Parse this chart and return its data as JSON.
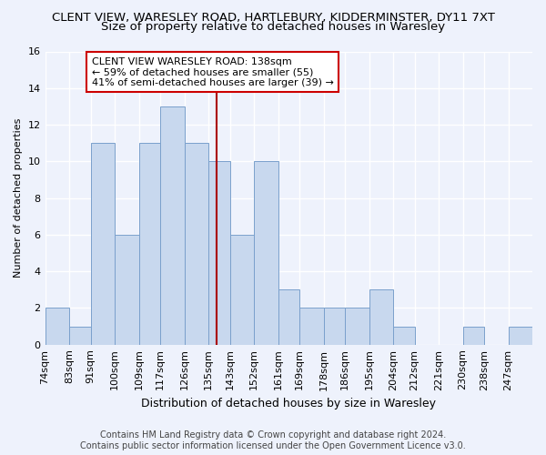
{
  "title1": "CLENT VIEW, WARESLEY ROAD, HARTLEBURY, KIDDERMINSTER, DY11 7XT",
  "title2": "Size of property relative to detached houses in Waresley",
  "xlabel": "Distribution of detached houses by size in Waresley",
  "ylabel": "Number of detached properties",
  "bin_labels": [
    "74sqm",
    "83sqm",
    "91sqm",
    "100sqm",
    "109sqm",
    "117sqm",
    "126sqm",
    "135sqm",
    "143sqm",
    "152sqm",
    "161sqm",
    "169sqm",
    "178sqm",
    "186sqm",
    "195sqm",
    "204sqm",
    "212sqm",
    "221sqm",
    "230sqm",
    "238sqm",
    "247sqm"
  ],
  "bin_edges": [
    74,
    83,
    91,
    100,
    109,
    117,
    126,
    135,
    143,
    152,
    161,
    169,
    178,
    186,
    195,
    204,
    212,
    221,
    230,
    238,
    247,
    256
  ],
  "bar_heights": [
    2,
    1,
    11,
    6,
    11,
    13,
    11,
    10,
    6,
    10,
    3,
    2,
    2,
    2,
    3,
    1,
    0,
    0,
    1,
    0,
    1
  ],
  "bar_color": "#c8d8ee",
  "bar_edge_color": "#7aa0cc",
  "ref_line_x": 138,
  "ref_line_color": "#aa0000",
  "annotation_line1": "CLENT VIEW WARESLEY ROAD: 138sqm",
  "annotation_line2": "← 59% of detached houses are smaller (55)",
  "annotation_line3": "41% of semi-detached houses are larger (39) →",
  "annotation_box_color": "#ffffff",
  "annotation_box_edge": "#cc0000",
  "ylim": [
    0,
    16
  ],
  "yticks": [
    0,
    2,
    4,
    6,
    8,
    10,
    12,
    14,
    16
  ],
  "footer1": "Contains HM Land Registry data © Crown copyright and database right 2024.",
  "footer2": "Contains public sector information licensed under the Open Government Licence v3.0.",
  "bg_color": "#eef2fc",
  "grid_color": "#ffffff",
  "title1_fontsize": 9.5,
  "title2_fontsize": 9.5,
  "xlabel_fontsize": 9,
  "ylabel_fontsize": 8,
  "tick_fontsize": 8,
  "annot_fontsize": 8,
  "footer_fontsize": 7
}
